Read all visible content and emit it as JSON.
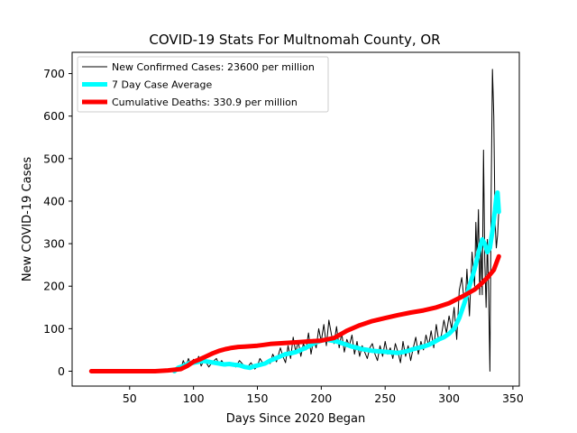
{
  "chart_data": {
    "type": "line",
    "title": "COVID-19 Stats For Multnomah County, OR",
    "xlabel": "Days Since 2020 Began",
    "ylabel": "New COVID-19 Cases",
    "xlim": [
      5,
      355
    ],
    "ylim": [
      -35,
      750
    ],
    "xticks": [
      50,
      100,
      150,
      200,
      250,
      300,
      350
    ],
    "yticks": [
      0,
      100,
      200,
      300,
      400,
      500,
      600,
      700
    ],
    "grid": false,
    "legend_position": "top-left",
    "series": [
      {
        "name": "New Confirmed Cases: 23600 per million",
        "color": "#000000",
        "line_width": 1,
        "x": [
          85,
          88,
          90,
          92,
          94,
          96,
          98,
          100,
          102,
          104,
          106,
          108,
          110,
          112,
          115,
          118,
          120,
          122,
          125,
          128,
          130,
          133,
          136,
          139,
          142,
          145,
          148,
          150,
          152,
          155,
          158,
          160,
          162,
          165,
          168,
          170,
          172,
          174,
          176,
          178,
          180,
          182,
          184,
          186,
          188,
          190,
          192,
          194,
          196,
          198,
          200,
          202,
          204,
          206,
          208,
          210,
          212,
          214,
          216,
          218,
          220,
          222,
          224,
          226,
          228,
          230,
          232,
          234,
          236,
          238,
          240,
          242,
          244,
          246,
          248,
          250,
          252,
          254,
          256,
          258,
          260,
          262,
          264,
          266,
          268,
          270,
          272,
          274,
          276,
          278,
          280,
          282,
          284,
          286,
          288,
          290,
          292,
          294,
          296,
          298,
          300,
          302,
          304,
          306,
          308,
          310,
          312,
          313,
          314,
          316,
          318,
          320,
          321,
          322,
          323,
          324,
          325,
          326,
          327,
          328,
          329,
          330,
          331,
          332,
          333,
          334,
          335,
          336,
          337,
          338,
          339
        ],
        "values": [
          0,
          12,
          5,
          25,
          10,
          30,
          15,
          28,
          18,
          35,
          12,
          25,
          20,
          10,
          22,
          30,
          15,
          25,
          12,
          20,
          18,
          10,
          25,
          15,
          8,
          20,
          5,
          12,
          30,
          15,
          25,
          18,
          40,
          22,
          55,
          35,
          20,
          60,
          30,
          80,
          45,
          70,
          35,
          65,
          50,
          90,
          40,
          75,
          55,
          100,
          70,
          110,
          60,
          120,
          85,
          65,
          105,
          55,
          90,
          45,
          75,
          60,
          85,
          40,
          70,
          35,
          60,
          45,
          30,
          55,
          65,
          40,
          25,
          60,
          35,
          70,
          40,
          55,
          30,
          65,
          45,
          20,
          70,
          35,
          60,
          25,
          55,
          80,
          40,
          70,
          50,
          85,
          60,
          95,
          55,
          110,
          70,
          85,
          120,
          90,
          130,
          100,
          150,
          75,
          190,
          220,
          160,
          180,
          240,
          130,
          280,
          200,
          350,
          260,
          380,
          180,
          300,
          180,
          520,
          260,
          150,
          310,
          180,
          0,
          420,
          710,
          600,
          350,
          290,
          320,
          380
        ]
      },
      {
        "name": "7 Day Case Average",
        "color": "#00ffff",
        "line_width": 5,
        "x": [
          85,
          88,
          92,
          96,
          100,
          104,
          108,
          112,
          116,
          120,
          124,
          128,
          132,
          136,
          140,
          144,
          148,
          152,
          156,
          160,
          164,
          168,
          172,
          176,
          180,
          184,
          188,
          192,
          196,
          200,
          204,
          208,
          212,
          216,
          220,
          224,
          228,
          232,
          236,
          240,
          244,
          248,
          252,
          256,
          260,
          264,
          268,
          272,
          276,
          280,
          284,
          288,
          292,
          296,
          300,
          304,
          308,
          312,
          316,
          320,
          322,
          324,
          326,
          328,
          330,
          332,
          334,
          336,
          337,
          338,
          339
        ],
        "values": [
          0,
          8,
          12,
          18,
          20,
          22,
          24,
          22,
          20,
          18,
          16,
          17,
          15,
          14,
          10,
          8,
          12,
          15,
          18,
          25,
          30,
          35,
          40,
          42,
          45,
          50,
          55,
          62,
          68,
          72,
          74,
          72,
          70,
          66,
          62,
          58,
          55,
          52,
          50,
          48,
          47,
          46,
          45,
          44,
          43,
          45,
          48,
          52,
          55,
          58,
          62,
          68,
          75,
          80,
          88,
          100,
          125,
          160,
          200,
          240,
          265,
          290,
          310,
          300,
          280,
          290,
          330,
          380,
          410,
          420,
          375
        ]
      },
      {
        "name": "Cumulative Deaths: 330.9 per million",
        "color": "#ff0000",
        "line_width": 5,
        "x": [
          20,
          30,
          40,
          50,
          60,
          70,
          80,
          90,
          95,
          100,
          105,
          110,
          115,
          120,
          125,
          130,
          135,
          140,
          145,
          150,
          155,
          160,
          170,
          180,
          190,
          200,
          210,
          220,
          230,
          240,
          250,
          260,
          270,
          280,
          290,
          300,
          310,
          320,
          325,
          330,
          335,
          339
        ],
        "values": [
          0,
          0,
          0,
          0,
          0,
          0,
          2,
          5,
          12,
          22,
          28,
          35,
          42,
          48,
          52,
          55,
          57,
          58,
          59,
          60,
          62,
          64,
          66,
          68,
          70,
          72,
          78,
          95,
          108,
          118,
          125,
          132,
          138,
          143,
          150,
          160,
          175,
          192,
          205,
          220,
          238,
          270
        ]
      }
    ]
  }
}
